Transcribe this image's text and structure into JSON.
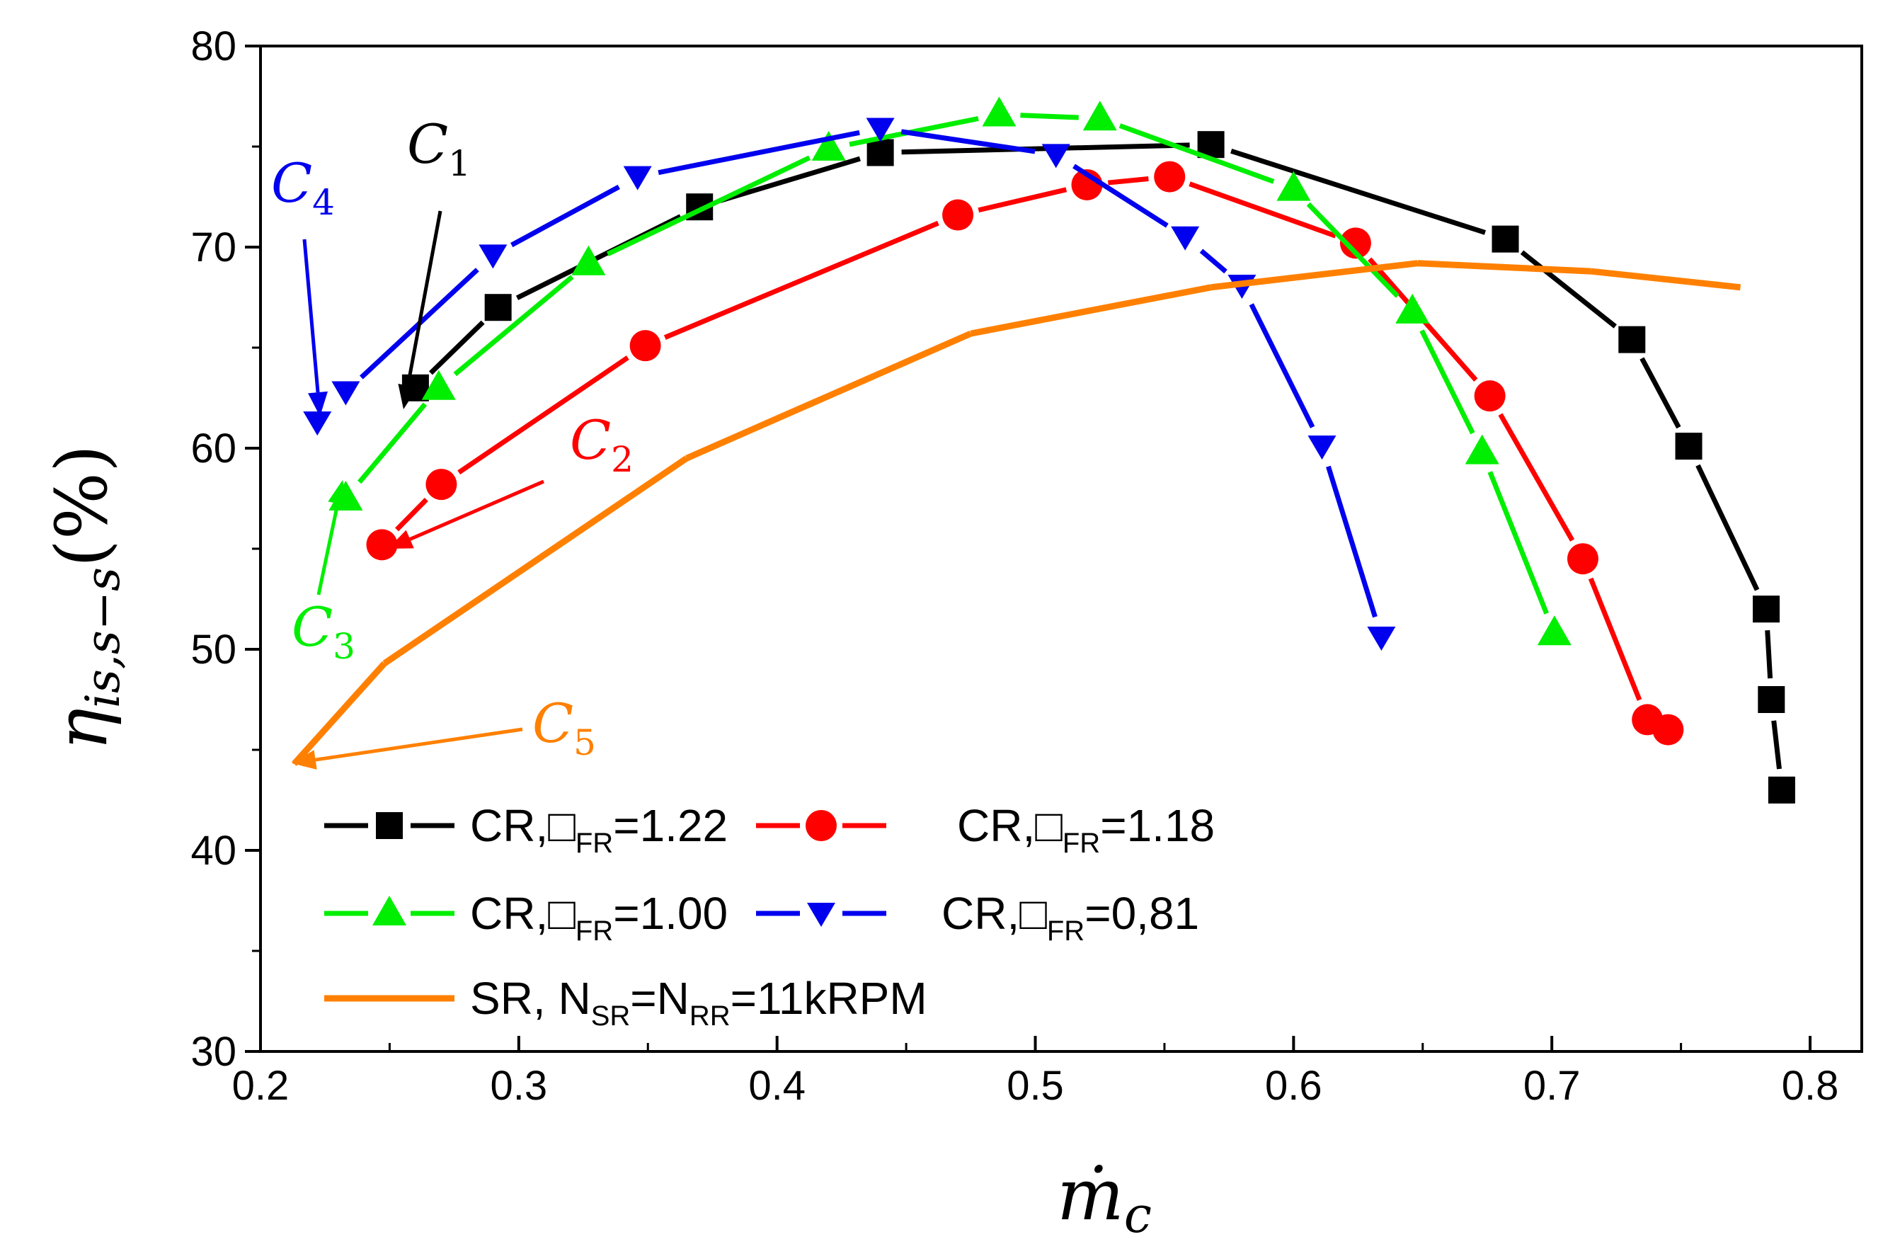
{
  "chart_data": {
    "type": "line",
    "xlabel": "ṁ",
    "xlabel_sub": "c",
    "ylabel": "η",
    "ylabel_sub": "is,s−s",
    "ylabel_unit": "(%)",
    "xlim": [
      0.2,
      0.82
    ],
    "ylim": [
      30,
      80
    ],
    "xticks": [
      "0.2",
      "0.3",
      "0.4",
      "0.5",
      "0.6",
      "0.7",
      "0.8"
    ],
    "yticks": [
      "30",
      "40",
      "50",
      "60",
      "70",
      "80"
    ],
    "series": [
      {
        "name": "CR,□FR=1.22",
        "label_main": "CR,□",
        "label_sub": "FR",
        "label_tail": "=1.22",
        "color": "#000000",
        "marker": "square",
        "x": [
          0.26,
          0.292,
          0.37,
          0.44,
          0.568,
          0.682,
          0.731,
          0.753,
          0.783,
          0.785,
          0.789
        ],
        "y": [
          63.0,
          67.0,
          72.0,
          74.7,
          75.1,
          70.4,
          65.4,
          60.1,
          52.0,
          47.5,
          43.0
        ]
      },
      {
        "name": "CR,□FR=1.18",
        "label_main": "CR,□",
        "label_sub": "FR",
        "label_tail": "=1.18",
        "color": "#ff0000",
        "marker": "circle",
        "x": [
          0.247,
          0.27,
          0.349,
          0.47,
          0.52,
          0.552,
          0.624,
          0.676,
          0.712,
          0.737,
          0.745
        ],
        "y": [
          55.2,
          58.2,
          65.1,
          71.6,
          73.1,
          73.5,
          70.2,
          62.6,
          54.5,
          46.5,
          46.0
        ]
      },
      {
        "name": "CR,□FR=1.00",
        "label_main": "CR,□",
        "label_sub": "FR",
        "label_tail": "=1.00",
        "color": "#00ee00",
        "marker": "triangle-up",
        "x": [
          0.233,
          0.269,
          0.327,
          0.42,
          0.486,
          0.525,
          0.6,
          0.646,
          0.673,
          0.701
        ],
        "y": [
          57.5,
          63.0,
          69.2,
          74.9,
          76.6,
          76.4,
          72.9,
          66.8,
          59.8,
          50.8
        ]
      },
      {
        "name": "CR,□FR=0,81",
        "label_main": "CR,□",
        "label_sub": "FR",
        "label_tail": "=0,81",
        "color": "#0000ee",
        "marker": "triangle-down",
        "x": [
          0.222,
          0.233,
          0.29,
          0.346,
          0.44,
          0.508,
          0.558,
          0.58,
          0.611,
          0.634
        ],
        "y": [
          61.3,
          62.8,
          69.6,
          73.5,
          75.9,
          74.6,
          70.5,
          68.1,
          60.1,
          50.6
        ]
      },
      {
        "name": "SR, NSR=NRR=11kRPM",
        "label_main": "SR, N",
        "label_sub": "SR",
        "label_mid": "=N",
        "label_sub2": "RR",
        "label_tail": "=11kRPM",
        "color": "#ff8000",
        "marker": "none",
        "x": [
          0.213,
          0.248,
          0.365,
          0.475,
          0.568,
          0.648,
          0.715,
          0.773
        ],
        "y": [
          44.3,
          49.3,
          59.5,
          65.7,
          68.0,
          69.2,
          68.8,
          68.0
        ]
      }
    ],
    "annotations": [
      {
        "text": "C",
        "sub": "1",
        "color": "#000000"
      },
      {
        "text": "C",
        "sub": "2",
        "color": "#ff0000"
      },
      {
        "text": "C",
        "sub": "3",
        "color": "#00ee00"
      },
      {
        "text": "C",
        "sub": "4",
        "color": "#0000ee"
      },
      {
        "text": "C",
        "sub": "5",
        "color": "#ff8000"
      }
    ]
  }
}
